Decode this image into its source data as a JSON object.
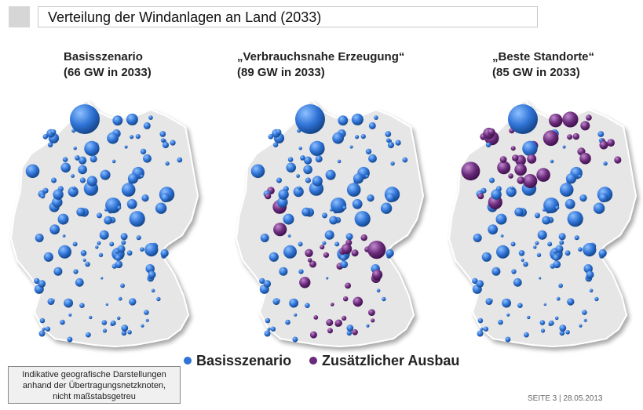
{
  "title": "Verteilung der Windanlagen an Land (2033)",
  "scenarios": [
    {
      "name": "Basisszenario",
      "capacity": "(66 GW in 2033)",
      "extra_share": 0
    },
    {
      "name": "„Verbrauchsnahe Erzeugung“",
      "capacity": "(89 GW in 2033)",
      "extra_share": 0.35
    },
    {
      "name": "„Beste Standorte“",
      "capacity": "(85 GW in 2033)",
      "extra_share": 0.3
    }
  ],
  "legend": [
    {
      "label": "Basisszenario",
      "color": "#2f73d6"
    },
    {
      "label": "Zusätzlicher Ausbau",
      "color": "#6a2a7a"
    }
  ],
  "note": [
    "Indikative geografische Darstellungen",
    "anhand der Übertragungsnetzknoten,",
    "nicht maßstabsgetreu"
  ],
  "footer": "SEITE 3 | 28.05.2013",
  "colors": {
    "base": "#2f73d6",
    "extra": "#6a2a7a",
    "map_fill": "#e6e6e6"
  }
}
